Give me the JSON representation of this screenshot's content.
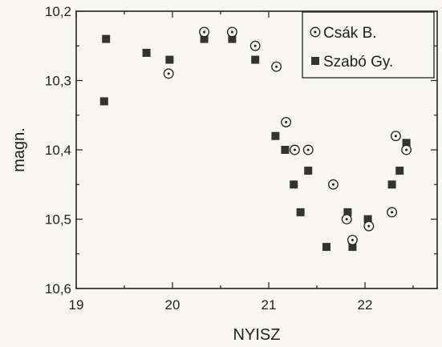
{
  "chart_data": {
    "type": "scatter",
    "xlabel": "NYISZ",
    "ylabel": "magn.",
    "xlim": [
      19,
      22.75
    ],
    "ylim": [
      10.2,
      10.6
    ],
    "y_inverted": true,
    "x_ticks": [
      19,
      20,
      21,
      22
    ],
    "x_tick_labels": [
      "19",
      "20",
      "21",
      "22"
    ],
    "y_ticks": [
      10.2,
      10.3,
      10.4,
      10.5,
      10.6
    ],
    "y_tick_labels": [
      "10,2",
      "10,3",
      "10,4",
      "10,5",
      "10,6"
    ],
    "legend_position": "top-right",
    "series": [
      {
        "name": "Csák B.",
        "marker": "circle-dot",
        "x": [
          19.96,
          20.33,
          20.62,
          20.86,
          21.08,
          21.18,
          21.27,
          21.41,
          21.67,
          21.81,
          21.87,
          22.04,
          22.28,
          22.32,
          22.43
        ],
        "y": [
          10.29,
          10.23,
          10.23,
          10.25,
          10.28,
          10.36,
          10.4,
          10.4,
          10.45,
          10.5,
          10.53,
          10.51,
          10.49,
          10.38,
          10.4
        ]
      },
      {
        "name": "Szabó Gy.",
        "marker": "filled-square",
        "x": [
          19.29,
          19.31,
          19.73,
          19.97,
          20.33,
          20.62,
          20.86,
          21.07,
          21.17,
          21.26,
          21.33,
          21.41,
          21.6,
          21.82,
          21.87,
          22.03,
          22.28,
          22.36,
          22.43
        ],
        "y": [
          10.33,
          10.24,
          10.26,
          10.27,
          10.24,
          10.24,
          10.27,
          10.38,
          10.4,
          10.45,
          10.49,
          10.43,
          10.54,
          10.49,
          10.54,
          10.5,
          10.45,
          10.43,
          10.39
        ]
      }
    ]
  }
}
